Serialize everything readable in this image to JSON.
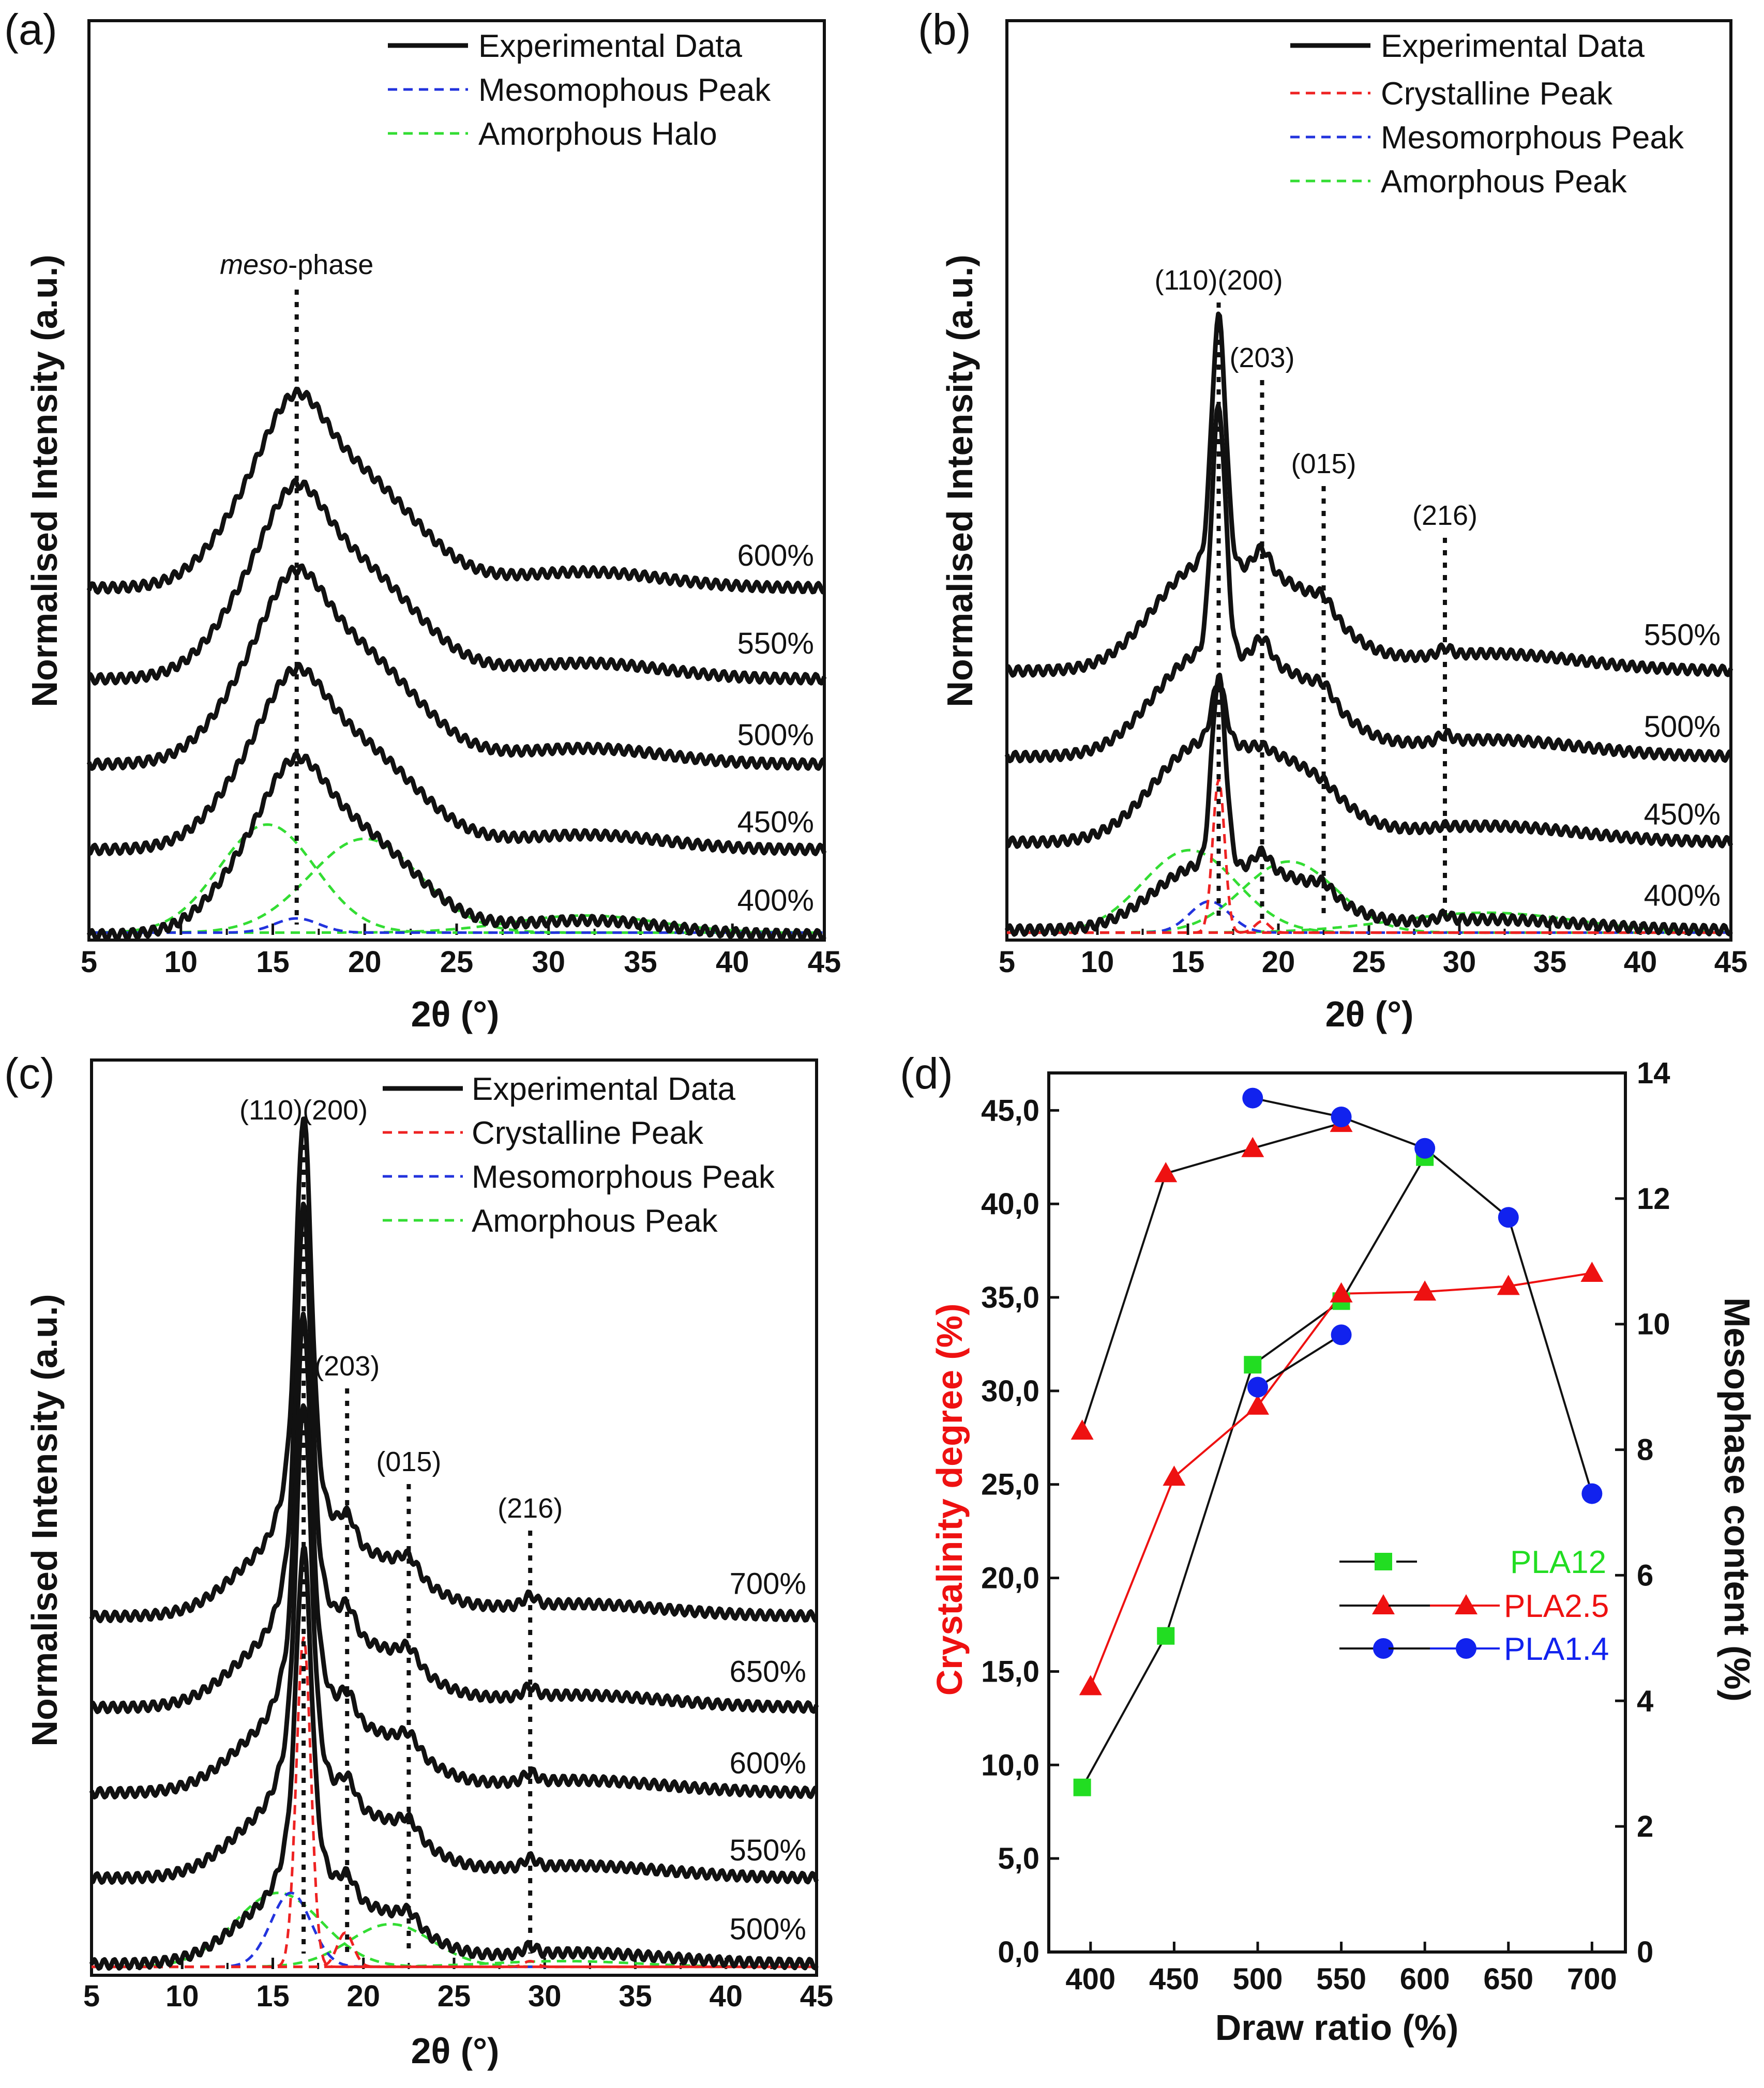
{
  "chart_data": [
    {
      "panel": "(a)",
      "type": "line",
      "title": "(a)",
      "xlabel": "2θ (°)",
      "ylabel": "Normalised Intensity (a.u.)",
      "xlim": [
        5,
        45
      ],
      "ylim": [
        0,
        1.05
      ],
      "xticks": [
        "5",
        "10",
        "15",
        "20",
        "25",
        "30",
        "35",
        "40",
        "45"
      ],
      "legend": [
        "Experimental Data",
        "Mesomophous Peak",
        "Amorphous Halo"
      ],
      "legend_position": "top-right",
      "annotation": {
        "italic": "meso",
        "rest": "-phase",
        "x": 16.3
      },
      "curves": [
        {
          "label": "400%",
          "offset": 0.0,
          "scale": 0.255,
          "sharp": 0
        },
        {
          "label": "450%",
          "offset": 0.15,
          "scale": 0.26,
          "sharp": 0
        },
        {
          "label": "500%",
          "offset": 0.3,
          "scale": 0.28,
          "sharp": 0
        },
        {
          "label": "550%",
          "offset": 0.45,
          "scale": 0.28,
          "sharp": 0
        },
        {
          "label": "600%",
          "offset": 0.61,
          "scale": 0.28,
          "sharp": 0
        }
      ],
      "components": [
        {
          "name": "Amorphous Halo",
          "center": 14.7,
          "sigma": 2.6,
          "height": 0.19
        },
        {
          "name": "Amorphous Halo",
          "center": 20.0,
          "sigma": 3.0,
          "height": 0.165
        },
        {
          "name": "Amorphous Halo",
          "center": 32.0,
          "sigma": 4.0,
          "height": 0.03
        },
        {
          "name": "Mesomophous Peak",
          "center": 16.3,
          "sigma": 1.2,
          "height": 0.025
        }
      ]
    },
    {
      "panel": "(b)",
      "type": "line",
      "title": "(b)",
      "xlabel": "2θ (°)",
      "ylabel": "Normalised Intensity (a.u.)",
      "xlim": [
        5,
        45
      ],
      "ylim": [
        0,
        1.05
      ],
      "xticks": [
        "5",
        "10",
        "15",
        "20",
        "25",
        "30",
        "35",
        "40",
        "45"
      ],
      "legend": [
        "Experimental Data",
        "Crystalline Peak",
        "Mesomorphous Peak",
        "Amorphous Peak"
      ],
      "legend_position": "top-right",
      "peak_labels": [
        {
          "text": "(110)(200)",
          "x": 16.7
        },
        {
          "text": "(203)",
          "x": 19.1
        },
        {
          "text": "(015)",
          "x": 22.5
        },
        {
          "text": "(216)",
          "x": 29.2
        }
      ],
      "curves": [
        {
          "label": "400%",
          "offset": 0.0,
          "scale": 0.17,
          "sharp": 0.33
        },
        {
          "label": "450%",
          "offset": 0.15,
          "scale": 0.26,
          "sharp": 0.1
        },
        {
          "label": "500%",
          "offset": 0.3,
          "scale": 0.27,
          "sharp": 0.43
        },
        {
          "label": "550%",
          "offset": 0.45,
          "scale": 0.28,
          "sharp": 0.43
        }
      ],
      "components": [
        {
          "name": "Amorphous Peak",
          "center": 15.1,
          "sigma": 2.6,
          "height": 0.145
        },
        {
          "name": "Amorphous Peak",
          "center": 20.6,
          "sigma": 2.6,
          "height": 0.125
        },
        {
          "name": "Amorphous Peak",
          "center": 31.5,
          "sigma": 5.0,
          "height": 0.035
        },
        {
          "name": "Mesomorphous Peak",
          "center": 16.2,
          "sigma": 1.1,
          "height": 0.055
        },
        {
          "name": "Crystalline Peak",
          "center": 16.7,
          "sigma": 0.33,
          "height": 0.27
        },
        {
          "name": "Crystalline Peak",
          "center": 19.1,
          "sigma": 0.4,
          "height": 0.02
        }
      ]
    },
    {
      "panel": "(c)",
      "type": "line",
      "title": "(c)",
      "xlabel": "2θ (°)",
      "ylabel": "Normalised Intensity (a.u.)",
      "xlim": [
        5,
        45
      ],
      "ylim": [
        0,
        1.05
      ],
      "xticks": [
        "5",
        "10",
        "15",
        "20",
        "25",
        "30",
        "35",
        "40",
        "45"
      ],
      "legend": [
        "Experimental Data",
        "Crystalline Peak",
        "Mesomorphous Peak",
        "Amorphous Peak"
      ],
      "legend_position": "top-right",
      "peak_labels": [
        {
          "text": "(110)(200)",
          "x": 16.7
        },
        {
          "text": "(203)",
          "x": 19.1
        },
        {
          "text": "(015)",
          "x": 22.5
        },
        {
          "text": "(216)",
          "x": 29.2
        }
      ],
      "curves": [
        {
          "label": "500%",
          "offset": 0.0,
          "scale": 0.18,
          "sharp": 0.45
        },
        {
          "label": "550%",
          "offset": 0.15,
          "scale": 0.2,
          "sharp": 0.52
        },
        {
          "label": "600%",
          "offset": 0.3,
          "scale": 0.2,
          "sharp": 0.52
        },
        {
          "label": "650%",
          "offset": 0.45,
          "scale": 0.2,
          "sharp": 0.55
        },
        {
          "label": "700%",
          "offset": 0.61,
          "scale": 0.2,
          "sharp": 0.55
        }
      ],
      "components": [
        {
          "name": "Amorphous Peak",
          "center": 15.3,
          "sigma": 2.4,
          "height": 0.13
        },
        {
          "name": "Amorphous Peak",
          "center": 21.5,
          "sigma": 2.3,
          "height": 0.075
        },
        {
          "name": "Amorphous Peak",
          "center": 31.0,
          "sigma": 4.0,
          "height": 0.01
        },
        {
          "name": "Mesomorphous Peak",
          "center": 16.0,
          "sigma": 1.1,
          "height": 0.13
        },
        {
          "name": "Crystalline Peak",
          "center": 16.7,
          "sigma": 0.4,
          "height": 0.58
        },
        {
          "name": "Crystalline Peak",
          "center": 19.0,
          "sigma": 0.45,
          "height": 0.06
        },
        {
          "name": "Crystalline Peak",
          "center": 29.2,
          "sigma": 0.35,
          "height": 0.01
        }
      ]
    },
    {
      "panel": "(d)",
      "type": "scatter",
      "title": "(d)",
      "xlabel": "Draw ratio (%)",
      "ylabel_left": "Crystalinity degree (%)",
      "ylabel_right": "Mesophase content (%)",
      "xlim": [
        375,
        720
      ],
      "xticks": [
        "400",
        "450",
        "500",
        "550",
        "600",
        "650",
        "700"
      ],
      "ylim_left": [
        0,
        47
      ],
      "yticks_left": [
        "0,0",
        "5,0",
        "10,0",
        "15,0",
        "20,0",
        "25,0",
        "30,0",
        "35,0",
        "40,0",
        "45,0"
      ],
      "ylim_right": [
        0,
        14
      ],
      "yticks_right": [
        "0",
        "2",
        "4",
        "6",
        "8",
        "10",
        "12",
        "14"
      ],
      "legend_position": "middle-right",
      "series": [
        {
          "name": "PLA12",
          "color": "#22dd22",
          "marker": "square",
          "crystallinity": {
            "x": [
              395,
              445,
              497,
              550,
              600
            ],
            "y": [
              8.8,
              16.9,
              31.4,
              34.8,
              42.5
            ]
          }
        },
        {
          "name": "PLA2.5",
          "color": "#ee1111",
          "marker": "triangle",
          "crystallinity": {
            "x": [
              400,
              450,
              500,
              550,
              600,
              650,
              700
            ],
            "y": [
              14.2,
              25.4,
              29.2,
              35.2,
              35.3,
              35.6,
              36.3
            ]
          },
          "mesophase": {
            "x": [
              395,
              445,
              497,
              550
            ],
            "y": [
              8.3,
              12.4,
              12.8,
              13.2
            ]
          }
        },
        {
          "name": "PLA1.4",
          "color": "#1122ee",
          "marker": "circle",
          "mesophase": {
            "x": [
              497,
              550,
              600,
              650,
              700
            ],
            "y": [
              13.6,
              13.3,
              12.8,
              11.7,
              7.3
            ]
          },
          "crystallinity_low": {
            "x": [
              500,
              550
            ],
            "y": [
              30.2,
              33.0
            ]
          }
        }
      ]
    }
  ]
}
